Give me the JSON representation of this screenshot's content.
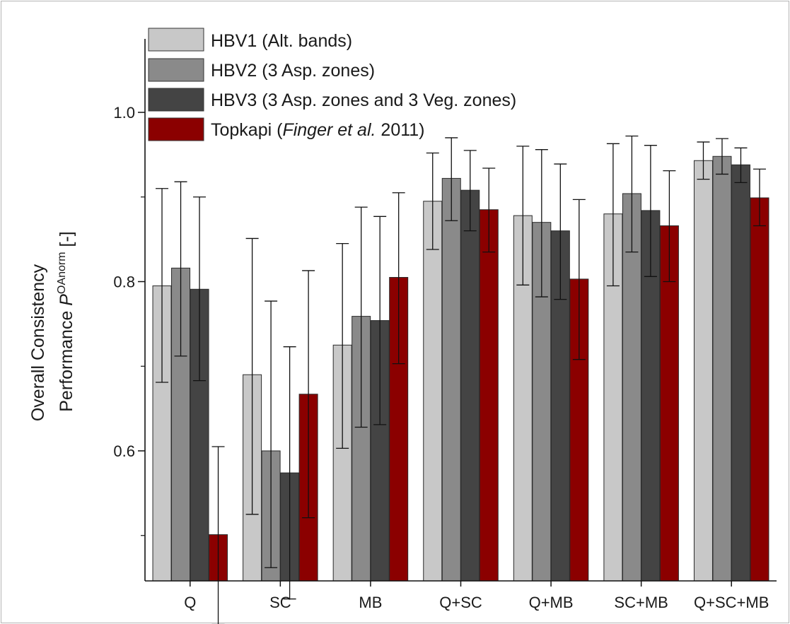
{
  "chart_data": {
    "type": "bar",
    "categories": [
      "Q",
      "SC",
      "MB",
      "Q+SC",
      "Q+MB",
      "SC+MB",
      "Q+SC+MB"
    ],
    "ylabel_line1": "Overall Consistency",
    "ylabel_line2_prefix": "Performance ",
    "ylabel_symbol": "P",
    "ylabel_superscript": "OAnorm",
    "ylabel_suffix": " [-]",
    "ylim": [
      0.5,
      1.0
    ],
    "yticks": [
      "0.6",
      "0.8",
      "1.0"
    ],
    "ytick_values": [
      0.6,
      0.8,
      1.0
    ],
    "legend_position": "top-left",
    "grid": false,
    "series": [
      {
        "name": "HBV1 (Alt. bands)",
        "color": "#c8c8c8",
        "values": [
          0.795,
          0.69,
          0.725,
          0.895,
          0.878,
          0.88,
          0.943
        ],
        "err_low": [
          0.681,
          0.525,
          0.603,
          0.838,
          0.796,
          0.795,
          0.921
        ],
        "err_high": [
          0.91,
          0.851,
          0.845,
          0.952,
          0.96,
          0.963,
          0.965
        ]
      },
      {
        "name": "HBV2 (3 Asp. zones)",
        "color": "#8a8a8a",
        "values": [
          0.816,
          0.6,
          0.759,
          0.922,
          0.87,
          0.904,
          0.948
        ],
        "err_low": [
          0.712,
          0.462,
          0.628,
          0.872,
          0.782,
          0.835,
          0.927
        ],
        "err_high": [
          0.918,
          0.777,
          0.888,
          0.97,
          0.956,
          0.972,
          0.969
        ]
      },
      {
        "name": "HBV3 (3 Asp. zones and 3 Veg. zones)",
        "color": "#444444",
        "values": [
          0.791,
          0.574,
          0.754,
          0.908,
          0.86,
          0.884,
          0.938
        ],
        "err_low": [
          0.683,
          0.425,
          0.631,
          0.86,
          0.779,
          0.806,
          0.917
        ],
        "err_high": [
          0.9,
          0.723,
          0.877,
          0.955,
          0.939,
          0.961,
          0.958
        ]
      },
      {
        "name_prefix": "Topkapi (",
        "name_italic": "Finger et al.",
        "name_suffix": " 2011)",
        "color": "#8b0000",
        "values": [
          0.501,
          0.667,
          0.805,
          0.885,
          0.803,
          0.866,
          0.899
        ],
        "err_low": [
          0.395,
          0.521,
          0.703,
          0.835,
          0.708,
          0.8,
          0.866
        ],
        "err_high": [
          0.605,
          0.813,
          0.905,
          0.934,
          0.897,
          0.931,
          0.933
        ]
      }
    ]
  }
}
